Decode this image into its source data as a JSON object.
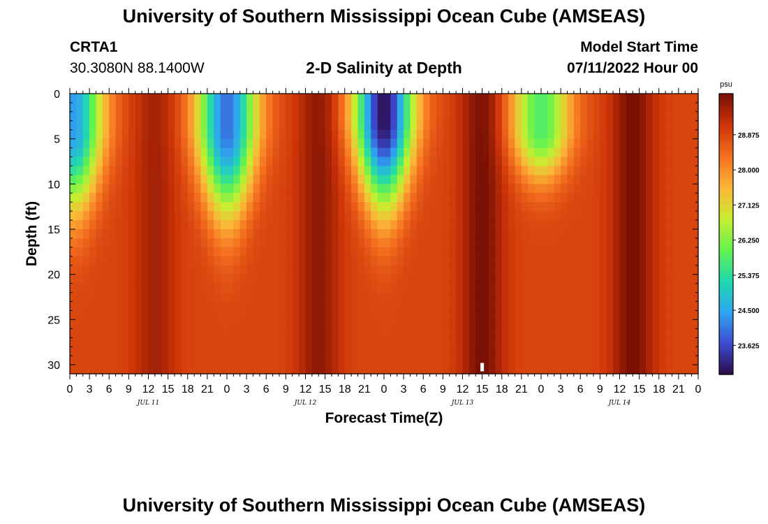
{
  "page": {
    "title_top": "University of Southern Mississippi Ocean Cube (AMSEAS)",
    "title_bottom": "University of Southern Mississippi Ocean Cube (AMSEAS)",
    "station_name": "CRTA1",
    "station_coords": "30.3080N  88.1400W",
    "plot_title": "2-D Salinity at Depth",
    "model_start_label": "Model Start Time",
    "model_start_value": "07/11/2022 Hour 00"
  },
  "chart_data": {
    "type": "heatmap",
    "title": "2-D Salinity at Depth",
    "xlabel": "Forecast Time(Z)",
    "ylabel": "Depth (ft)",
    "x_range_hours": [
      0,
      96
    ],
    "y_range_ft": [
      0,
      31
    ],
    "y_inverted": true,
    "x_tick_labels": [
      "0",
      "3",
      "6",
      "9",
      "12",
      "15",
      "18",
      "21",
      "0",
      "3",
      "6",
      "9",
      "12",
      "15",
      "18",
      "21",
      "0",
      "3",
      "6",
      "9",
      "12",
      "15",
      "18",
      "21",
      "0",
      "3",
      "6",
      "9",
      "12",
      "15",
      "18",
      "21",
      "0"
    ],
    "y_ticks": [
      0,
      5,
      10,
      15,
      20,
      25,
      30
    ],
    "date_labels": [
      "JUL 11",
      "JUL 12",
      "JUL 13",
      "JUL 14"
    ],
    "colorbar": {
      "unit": "psu",
      "vmin": 22.9,
      "vmax": 29.9,
      "tick_values": [
        23.625,
        24.5,
        25.375,
        26.25,
        27.125,
        28.0,
        28.875
      ],
      "tick_labels": [
        "23.625",
        "24.500",
        "25.375",
        "26.250",
        "27.125",
        "28.000",
        "28.875"
      ],
      "colors": [
        "#2a0a46",
        "#3c4bd0",
        "#2fa5f0",
        "#20d8b0",
        "#64f250",
        "#c8ee30",
        "#fbb638",
        "#f46f1f",
        "#cd3408",
        "#781004"
      ]
    },
    "features": [
      {
        "kind": "low",
        "center_hour": 0.5,
        "center_depth_ft": 4,
        "min_psu": 24.4,
        "depth_extent_ft": 16
      },
      {
        "kind": "low",
        "center_hour": 24,
        "center_depth_ft": 4,
        "min_psu": 24.0,
        "depth_extent_ft": 17
      },
      {
        "kind": "low",
        "center_hour": 48,
        "center_depth_ft": 3,
        "min_psu": 23.0,
        "depth_extent_ft": 17
      },
      {
        "kind": "low",
        "center_hour": 72,
        "center_depth_ft": 4,
        "min_psu": 25.8,
        "depth_extent_ft": 10
      },
      {
        "kind": "high",
        "center_hour": 13,
        "center_depth_ft": 12,
        "max_psu": 29.5
      },
      {
        "kind": "high",
        "center_hour": 38,
        "center_depth_ft": 20,
        "max_psu": 29.7
      },
      {
        "kind": "high",
        "center_hour": 63,
        "center_depth_ft": 24,
        "max_psu": 29.9
      },
      {
        "kind": "high",
        "center_hour": 86,
        "center_depth_ft": 12,
        "max_psu": 29.9
      }
    ],
    "current_time_marker_hour": 63
  }
}
